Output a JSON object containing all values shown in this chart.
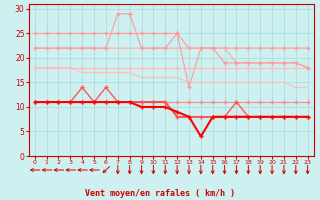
{
  "title": "",
  "xlabel": "Vent moyen/en rafales ( km/h )",
  "bg_color": "#cff0f0",
  "grid_color": "#aadddd",
  "axis_color": "#cc0000",
  "text_color": "#cc0000",
  "xlim": [
    -0.5,
    23.5
  ],
  "ylim": [
    0,
    31
  ],
  "yticks": [
    0,
    5,
    10,
    15,
    20,
    25,
    30
  ],
  "xticks": [
    0,
    1,
    2,
    3,
    4,
    5,
    6,
    7,
    8,
    9,
    10,
    11,
    12,
    13,
    14,
    15,
    16,
    17,
    18,
    19,
    20,
    21,
    22,
    23
  ],
  "x": [
    0,
    1,
    2,
    3,
    4,
    5,
    6,
    7,
    8,
    9,
    10,
    11,
    12,
    13,
    14,
    15,
    16,
    17,
    18,
    19,
    20,
    21,
    22,
    23
  ],
  "series": [
    {
      "y": [
        25,
        25,
        25,
        25,
        25,
        25,
        25,
        25,
        25,
        25,
        25,
        25,
        25,
        22,
        22,
        22,
        22,
        22,
        22,
        22,
        22,
        22,
        22,
        22
      ],
      "color": "#ff9999",
      "lw": 0.8,
      "marker": "+",
      "markersize": 3,
      "zorder": 2
    },
    {
      "y": [
        22,
        22,
        22,
        22,
        22,
        22,
        22,
        22,
        22,
        22,
        22,
        22,
        22,
        22,
        22,
        22,
        22,
        19,
        19,
        19,
        19,
        19,
        19,
        18
      ],
      "color": "#ffaaaa",
      "lw": 0.8,
      "marker": null,
      "markersize": 3,
      "zorder": 2
    },
    {
      "y": [
        22,
        22,
        22,
        22,
        22,
        22,
        22,
        29,
        29,
        22,
        22,
        22,
        25,
        14,
        22,
        22,
        19,
        19,
        19,
        19,
        19,
        19,
        19,
        18
      ],
      "color": "#ff9999",
      "lw": 0.8,
      "marker": "+",
      "markersize": 3,
      "zorder": 3
    },
    {
      "y": [
        18,
        18,
        18,
        18,
        18,
        18,
        18,
        18,
        18,
        18,
        18,
        18,
        18,
        18,
        18,
        18,
        18,
        18,
        18,
        18,
        18,
        18,
        18,
        18
      ],
      "color": "#ffbbbb",
      "lw": 0.8,
      "marker": "+",
      "markersize": 3,
      "zorder": 2
    },
    {
      "y": [
        18,
        18,
        18,
        18,
        17,
        17,
        17,
        17,
        17,
        16,
        16,
        16,
        16,
        15,
        15,
        15,
        15,
        15,
        15,
        15,
        15,
        15,
        14,
        14
      ],
      "color": "#ffbbbb",
      "lw": 0.8,
      "marker": null,
      "markersize": 3,
      "zorder": 2
    },
    {
      "y": [
        11,
        11,
        11,
        11,
        14,
        11,
        14,
        11,
        11,
        11,
        11,
        11,
        8,
        8,
        8,
        8,
        8,
        11,
        8,
        8,
        8,
        8,
        8,
        8
      ],
      "color": "#ff5555",
      "lw": 1.0,
      "marker": "+",
      "markersize": 3,
      "zorder": 4
    },
    {
      "y": [
        11,
        11,
        11,
        11,
        11,
        11,
        11,
        11,
        11,
        11,
        11,
        11,
        11,
        11,
        11,
        11,
        11,
        11,
        11,
        11,
        11,
        11,
        11,
        11
      ],
      "color": "#ff8888",
      "lw": 0.8,
      "marker": "+",
      "markersize": 3,
      "zorder": 3
    },
    {
      "y": [
        11,
        11,
        11,
        11,
        11,
        11,
        11,
        11,
        11,
        10,
        10,
        10,
        9,
        8,
        4,
        8,
        8,
        8,
        8,
        8,
        8,
        8,
        8,
        8
      ],
      "color": "#ff0000",
      "lw": 1.5,
      "marker": "+",
      "markersize": 3,
      "zorder": 5
    },
    {
      "y": [
        11,
        11,
        11,
        11,
        11,
        11,
        11,
        11,
        11,
        11,
        11,
        11,
        8,
        8,
        8,
        8,
        8,
        8,
        8,
        8,
        8,
        8,
        8,
        8
      ],
      "color": "#cc0000",
      "lw": 1.0,
      "marker": null,
      "markersize": 3,
      "zorder": 3
    }
  ],
  "arrow_angles": [
    180,
    180,
    180,
    180,
    180,
    180,
    225,
    270,
    270,
    270,
    270,
    270,
    270,
    270,
    270,
    270,
    270,
    270,
    270,
    270,
    270,
    270,
    270,
    270
  ]
}
